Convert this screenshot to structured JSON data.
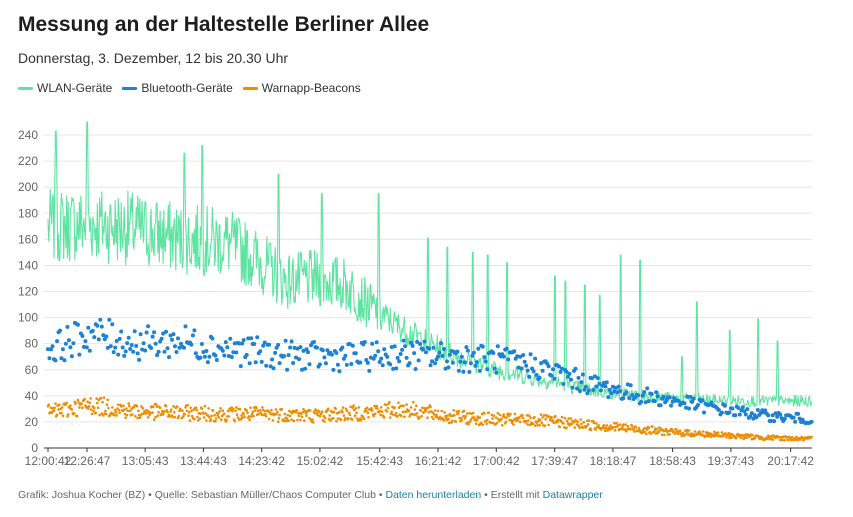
{
  "title": "Messung an der Haltestelle Berliner Allee",
  "subtitle": "Donnerstag, 3. Dezember, 12 bis 20.30 Uhr",
  "footer": {
    "credit": "Grafik: Joshua Kocher (BZ) • Quelle: Sebastian Müller/Chaos Computer Club • ",
    "download_label": "Daten herunterladen",
    "made_with": " • Erstellt mit ",
    "tool_label": "Datawrapper"
  },
  "chart_data": {
    "type": "line",
    "x_ticks": [
      "12:00:42",
      "12:26:47",
      "13:05:43",
      "13:44:43",
      "14:23:42",
      "15:02:42",
      "15:42:43",
      "16:21:42",
      "17:00:42",
      "17:39:47",
      "18:18:47",
      "18:58:43",
      "19:37:43",
      "20:17:42"
    ],
    "ylim": [
      0,
      250
    ],
    "y_ticks": [
      0,
      20,
      40,
      60,
      80,
      100,
      120,
      140,
      160,
      180,
      200,
      220,
      240
    ],
    "grid": true,
    "legend_position": "top-left",
    "series": [
      {
        "name": "WLAN-Geräte",
        "color": "#5fe3a1",
        "style": "line",
        "keypoints_time": [
          "12:00",
          "12:30",
          "13:00",
          "13:30",
          "14:00",
          "14:20",
          "14:40",
          "15:00",
          "15:20",
          "15:40",
          "16:00",
          "16:20",
          "16:40",
          "17:00",
          "17:20",
          "17:40",
          "18:00",
          "18:20",
          "18:40",
          "19:00",
          "19:20",
          "19:40",
          "20:00",
          "20:30"
        ],
        "keypoints_value": [
          170,
          172,
          168,
          160,
          158,
          145,
          128,
          130,
          125,
          105,
          90,
          78,
          68,
          60,
          55,
          50,
          45,
          42,
          40,
          38,
          37,
          36,
          36,
          36
        ],
        "peaks_time": [
          "12:06",
          "12:27",
          "13:32",
          "13:44",
          "14:35",
          "15:04",
          "15:42",
          "16:15",
          "16:28",
          "16:45",
          "16:55",
          "17:08",
          "17:40",
          "17:47",
          "18:00",
          "18:10",
          "18:24",
          "18:37",
          "19:05",
          "19:15",
          "19:37",
          "19:56",
          "20:09"
        ],
        "peaks_value": [
          243,
          250,
          226,
          232,
          210,
          195,
          195,
          161,
          154,
          150,
          148,
          142,
          132,
          128,
          125,
          117,
          148,
          144,
          70,
          112,
          90,
          99,
          82
        ]
      },
      {
        "name": "Bluetooth-Geräte",
        "color": "#1d81d4",
        "style": "dots",
        "keypoints_time": [
          "12:00",
          "12:30",
          "13:00",
          "13:30",
          "14:00",
          "14:30",
          "15:00",
          "15:30",
          "16:00",
          "16:30",
          "17:00",
          "17:30",
          "18:00",
          "18:30",
          "19:00",
          "19:30",
          "20:00",
          "20:30"
        ],
        "keypoints_value": [
          75,
          88,
          80,
          82,
          76,
          72,
          70,
          70,
          72,
          70,
          68,
          62,
          50,
          42,
          36,
          30,
          25,
          22
        ]
      },
      {
        "name": "Warnapp-Beacons",
        "color": "#f08c00",
        "style": "dots",
        "keypoints_time": [
          "12:00",
          "12:30",
          "13:00",
          "13:30",
          "14:00",
          "14:30",
          "15:00",
          "15:30",
          "16:00",
          "16:30",
          "17:00",
          "17:30",
          "18:00",
          "18:30",
          "19:00",
          "19:30",
          "20:00",
          "20:30"
        ],
        "keypoints_value": [
          27,
          33,
          28,
          27,
          26,
          26,
          25,
          27,
          30,
          24,
          22,
          21,
          18,
          15,
          12,
          10,
          8,
          7
        ]
      }
    ]
  }
}
